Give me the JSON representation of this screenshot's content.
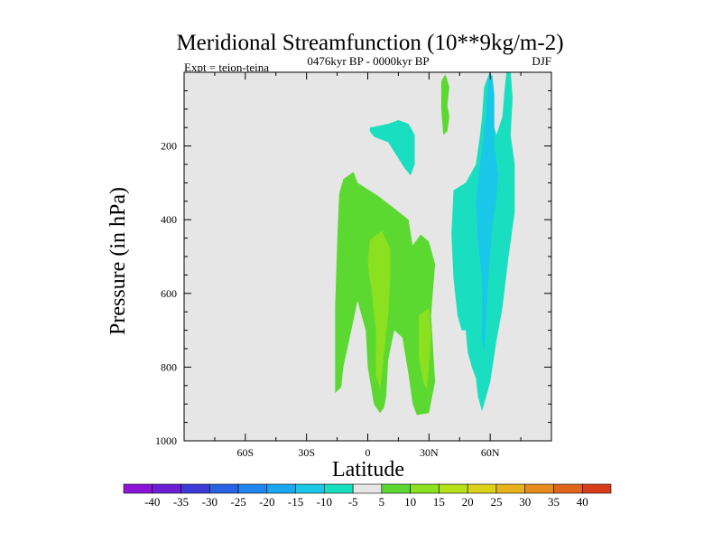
{
  "chart_data": {
    "type": "heatmap",
    "title": "Meridional Streamfunction (10**9kg/m-2)",
    "subtitle": "0476kyr BP - 0000kyr BP",
    "left_label": "Expt = teion-teina",
    "right_label": "DJF",
    "xlabel": "Latitude",
    "ylabel": "Pressure (in hPa)",
    "xlim": [
      -90,
      90
    ],
    "ylim": [
      1000,
      0
    ],
    "x_ticks": [
      {
        "value": -60,
        "label": "60S"
      },
      {
        "value": -30,
        "label": "30S"
      },
      {
        "value": 0,
        "label": "0"
      },
      {
        "value": 30,
        "label": "30N"
      },
      {
        "value": 60,
        "label": "60N"
      }
    ],
    "y_ticks": [
      {
        "value": 200,
        "label": "200"
      },
      {
        "value": 400,
        "label": "400"
      },
      {
        "value": 600,
        "label": "600"
      },
      {
        "value": 800,
        "label": "800"
      },
      {
        "value": 1000,
        "label": "1000"
      }
    ],
    "background_color": "#e6e6e6",
    "colorbar": {
      "labels": [
        "-40",
        "-35",
        "-30",
        "-25",
        "-20",
        "-15",
        "-10",
        "-5",
        "5",
        "10",
        "15",
        "20",
        "25",
        "30",
        "35",
        "40"
      ],
      "colors": [
        "#8c14d9",
        "#6b1fd4",
        "#3d3bd8",
        "#2862e3",
        "#1f86ee",
        "#19a7f0",
        "#19c7e8",
        "#19dfc0",
        "#e6e6e6",
        "#5cd930",
        "#8be01f",
        "#b5e01a",
        "#dcd21c",
        "#e6b31c",
        "#e68c1c",
        "#e0641c",
        "#d93c19"
      ]
    },
    "regions": [
      {
        "level": 5,
        "color": "#5cd930",
        "points": [
          [
            -12,
            290
          ],
          [
            -7,
            270
          ],
          [
            -5,
            300
          ],
          [
            5,
            335
          ],
          [
            12,
            365
          ],
          [
            20,
            400
          ],
          [
            22,
            470
          ],
          [
            26,
            440
          ],
          [
            30,
            460
          ],
          [
            33,
            520
          ],
          [
            31,
            660
          ],
          [
            33,
            840
          ],
          [
            30,
            925
          ],
          [
            24,
            930
          ],
          [
            22,
            900
          ],
          [
            20,
            820
          ],
          [
            17,
            720
          ],
          [
            13,
            700
          ],
          [
            10,
            780
          ],
          [
            9,
            880
          ],
          [
            8,
            910
          ],
          [
            6,
            925
          ],
          [
            3,
            900
          ],
          [
            0,
            800
          ],
          [
            -1,
            700
          ],
          [
            -5,
            620
          ],
          [
            -10,
            750
          ],
          [
            -12,
            800
          ],
          [
            -13,
            855
          ],
          [
            -16,
            870
          ],
          [
            -16,
            640
          ],
          [
            -15,
            460
          ],
          [
            -14,
            330
          ]
        ]
      },
      {
        "level": 5,
        "color": "#5cd930",
        "points": [
          [
            36,
            25
          ],
          [
            38,
            5
          ],
          [
            40,
            40
          ],
          [
            39,
            90
          ],
          [
            40,
            120
          ],
          [
            39,
            160
          ],
          [
            37,
            170
          ],
          [
            36,
            100
          ]
        ]
      },
      {
        "level": 10,
        "color": "#8be01f",
        "points": [
          [
            1,
            455
          ],
          [
            7,
            430
          ],
          [
            11,
            480
          ],
          [
            11,
            560
          ],
          [
            10,
            660
          ],
          [
            8,
            760
          ],
          [
            6,
            860
          ],
          [
            4,
            820
          ],
          [
            4,
            700
          ],
          [
            2,
            600
          ],
          [
            0,
            520
          ]
        ]
      },
      {
        "level": 10,
        "color": "#8be01f",
        "points": [
          [
            25,
            660
          ],
          [
            30,
            640
          ],
          [
            31,
            710
          ],
          [
            30,
            800
          ],
          [
            29,
            860
          ],
          [
            27,
            840
          ],
          [
            25,
            770
          ],
          [
            25,
            700
          ]
        ]
      },
      {
        "level": -5,
        "color": "#19dfc0",
        "points": [
          [
            1,
            150
          ],
          [
            10,
            140
          ],
          [
            15,
            130
          ],
          [
            20,
            140
          ],
          [
            23,
            170
          ],
          [
            23,
            250
          ],
          [
            21,
            280
          ],
          [
            18,
            260
          ],
          [
            14,
            225
          ],
          [
            10,
            190
          ],
          [
            3,
            175
          ],
          [
            1,
            160
          ]
        ]
      },
      {
        "level": -5,
        "color": "#19dfc0",
        "points": [
          [
            42,
            320
          ],
          [
            48,
            300
          ],
          [
            53,
            250
          ],
          [
            55,
            170
          ],
          [
            56,
            120
          ],
          [
            57,
            40
          ],
          [
            60,
            -5
          ],
          [
            61,
            60
          ],
          [
            60,
            110
          ],
          [
            63,
            170
          ],
          [
            66,
            120
          ],
          [
            67,
            50
          ],
          [
            68,
            -5
          ],
          [
            70,
            -5
          ],
          [
            71,
            70
          ],
          [
            70,
            170
          ],
          [
            72,
            250
          ],
          [
            72,
            380
          ],
          [
            69,
            500
          ],
          [
            66,
            640
          ],
          [
            63,
            730
          ],
          [
            60,
            840
          ],
          [
            57,
            900
          ],
          [
            56,
            920
          ],
          [
            54,
            880
          ],
          [
            53,
            830
          ],
          [
            51,
            800
          ],
          [
            49,
            760
          ],
          [
            48,
            700
          ],
          [
            46,
            700
          ],
          [
            44,
            660
          ],
          [
            42,
            560
          ],
          [
            41,
            440
          ]
        ]
      },
      {
        "level": -10,
        "color": "#19c7e8",
        "points": [
          [
            55,
            250
          ],
          [
            58,
            120
          ],
          [
            59,
            20
          ],
          [
            61,
            5
          ],
          [
            62,
            60
          ],
          [
            62,
            200
          ],
          [
            64,
            280
          ],
          [
            63,
            340
          ],
          [
            61,
            420
          ],
          [
            59,
            560
          ],
          [
            58,
            680
          ],
          [
            57,
            760
          ],
          [
            56,
            720
          ],
          [
            56,
            560
          ],
          [
            54,
            460
          ],
          [
            53,
            350
          ]
        ]
      }
    ]
  }
}
